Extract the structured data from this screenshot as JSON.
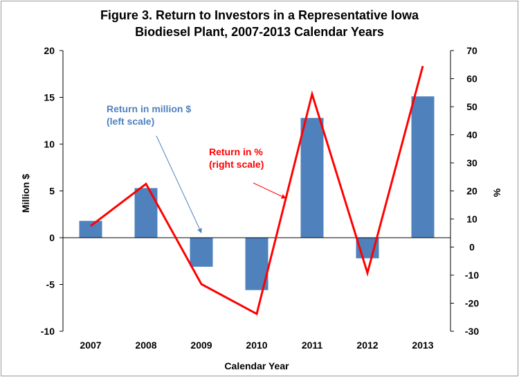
{
  "chart_data": {
    "type": "bar",
    "title": [
      "Figure 3. Return to Investors in a Representative Iowa",
      "Biodiesel Plant, 2007-2013  Calendar Years"
    ],
    "xlabel": "Calendar Year",
    "ylabel": "Million $",
    "y2label": "%",
    "categories": [
      "2007",
      "2008",
      "2009",
      "2010",
      "2011",
      "2012",
      "2013"
    ],
    "ylim": [
      -10,
      20
    ],
    "y2lim": [
      -30,
      70
    ],
    "yticks": [
      "20",
      "15",
      "10",
      "5",
      "0",
      "-5",
      "-10"
    ],
    "y2ticks": [
      "70",
      "60",
      "50",
      "40",
      "30",
      "20",
      "10",
      "0",
      "-10",
      "-20",
      "-30"
    ],
    "series": [
      {
        "name": "Return in million $ (left scale)",
        "type": "bar",
        "axis": "left",
        "color": "#4f81bd",
        "values": [
          1.8,
          5.3,
          -3.1,
          -5.6,
          12.8,
          -2.2,
          15.1
        ]
      },
      {
        "name": "Return in % (right scale)",
        "type": "line",
        "axis": "right",
        "color": "#ff0000",
        "values": [
          7.5,
          22.5,
          -13.2,
          -23.8,
          54.5,
          -9.2,
          64.5
        ]
      }
    ],
    "annotations": [
      {
        "lines": [
          "Return in million $",
          "(left scale)"
        ],
        "color": "#4f81bd",
        "points_to": "2009 bar"
      },
      {
        "lines": [
          "Return in %",
          "(right scale)"
        ],
        "color": "#ff0000",
        "points_to": "line"
      }
    ],
    "grid": false,
    "legend": "none"
  }
}
